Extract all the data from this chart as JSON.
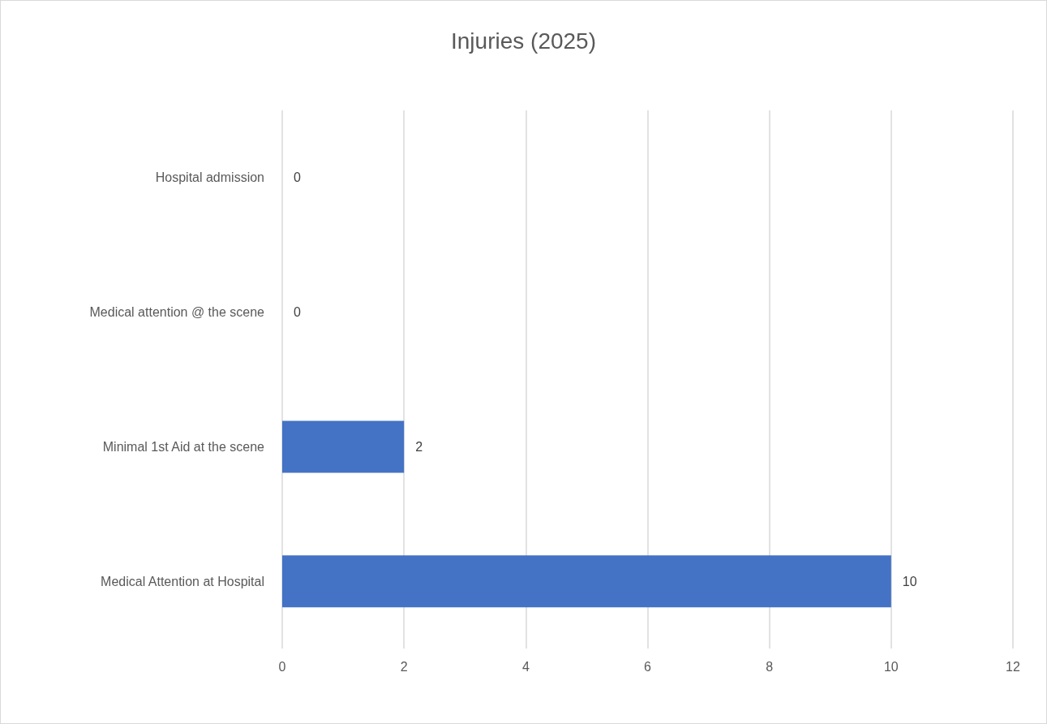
{
  "chart_data": {
    "type": "bar",
    "orientation": "horizontal",
    "title": "Injuries (2025)",
    "categories": [
      "Hospital admission",
      "Medical attention @ the scene",
      "Minimal 1st Aid at the scene",
      "Medical Attention at Hospital"
    ],
    "values": [
      0,
      0,
      2,
      10
    ],
    "color": "#4472c4",
    "xlim": [
      0,
      12
    ],
    "xticks": [
      0,
      2,
      4,
      6,
      8,
      10,
      12
    ],
    "grid": "x",
    "data_labels": true
  }
}
